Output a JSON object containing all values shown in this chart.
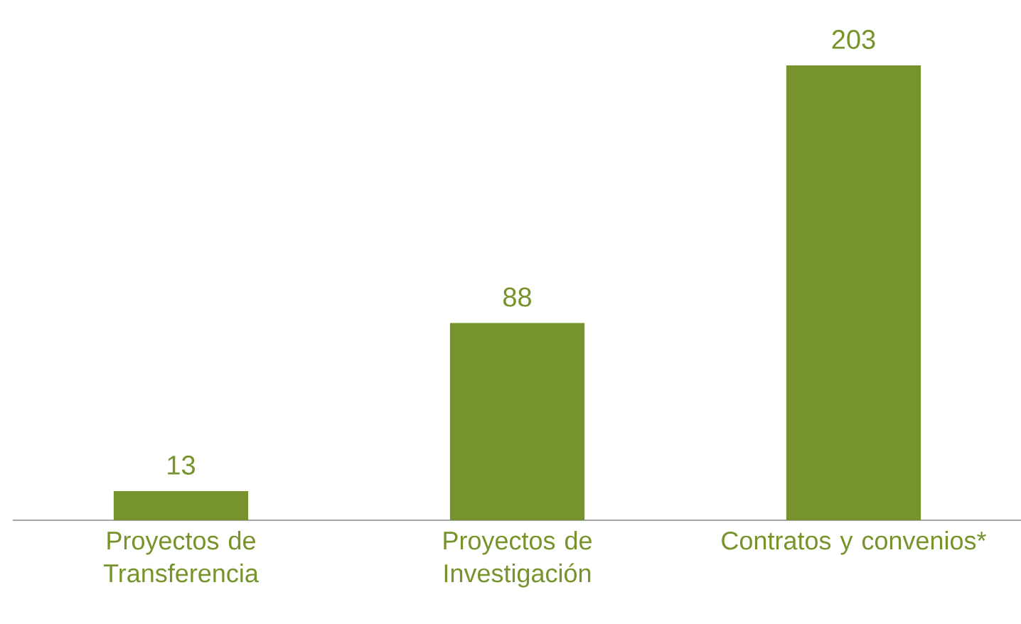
{
  "chart_data": {
    "type": "bar",
    "categories": [
      "Proyectos de Transferencia",
      "Proyectos de Investigación",
      "Contratos y convenios*"
    ],
    "values": [
      13,
      88,
      203
    ],
    "color": "#77932b",
    "data_labels": true
  }
}
